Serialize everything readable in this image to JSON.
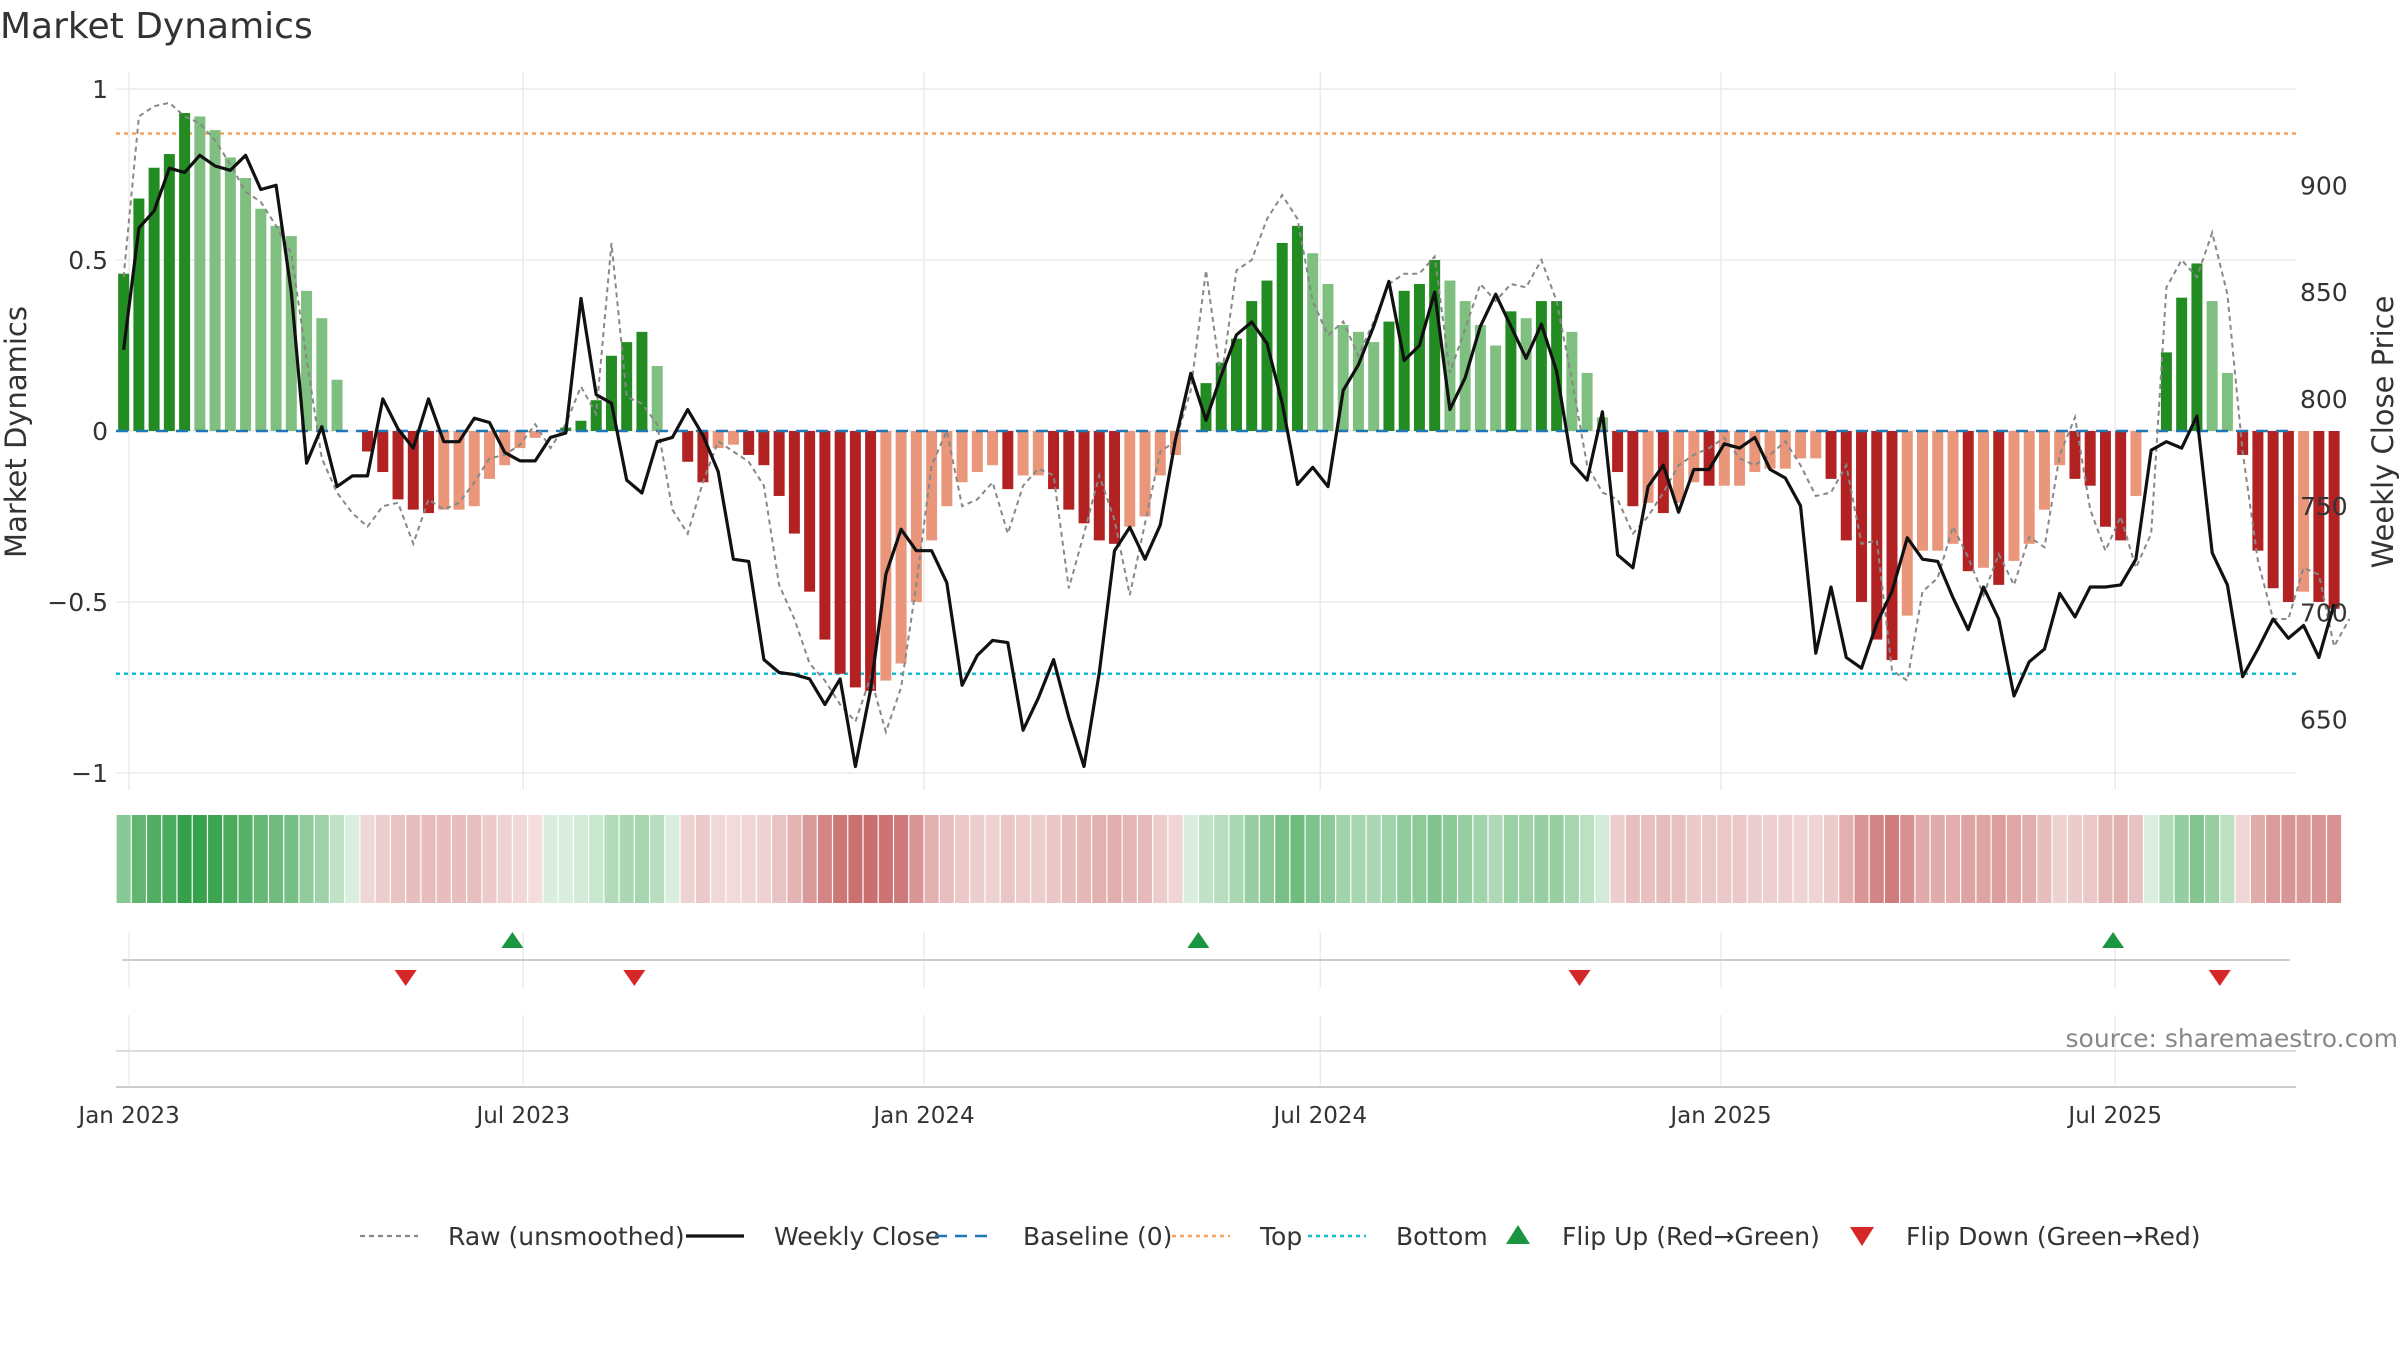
{
  "chart_data": {
    "type": "bar",
    "title": "Market Dynamics",
    "ylabel_left": "Market Dynamics",
    "ylabel_right": "Weekly Close Price",
    "source": "source: sharemaestro.com",
    "y_left_lim": [
      -1.05,
      1.05
    ],
    "y_left_ticks": [
      {
        "value": 1,
        "label": "1"
      },
      {
        "value": 0.5,
        "label": "0.5"
      },
      {
        "value": 0,
        "label": "0"
      },
      {
        "value": -0.5,
        "label": "−0.5"
      },
      {
        "value": -1,
        "label": "−1"
      }
    ],
    "y_right_lim": [
      617,
      953
    ],
    "y_right_ticks": [
      {
        "value": 900,
        "label": "900"
      },
      {
        "value": 850,
        "label": "850"
      },
      {
        "value": 800,
        "label": "800"
      },
      {
        "value": 750,
        "label": "750"
      },
      {
        "value": 700,
        "label": "700"
      },
      {
        "value": 650,
        "label": "650"
      }
    ],
    "x_range": [
      "2022-12-26",
      "2025-09-22"
    ],
    "x_ticks": [
      {
        "date": "2023-01-01",
        "label": "Jan 2023"
      },
      {
        "date": "2023-07-01",
        "label": "Jul 2023"
      },
      {
        "date": "2024-01-01",
        "label": "Jan 2024"
      },
      {
        "date": "2024-07-01",
        "label": "Jul 2024"
      },
      {
        "date": "2025-01-01",
        "label": "Jan 2025"
      },
      {
        "date": "2025-07-01",
        "label": "Jul 2025"
      }
    ],
    "start_date": "2022-12-26",
    "week_days": 7,
    "top_level": 0.87,
    "bottom_level": -0.71,
    "baseline": 0,
    "colors": {
      "up_strong": "#228b22",
      "up_weak": "#7fbf7f",
      "down_strong": "#b22222",
      "down_weak": "#e9967a",
      "close_line": "#111111",
      "raw_line": "#888888",
      "baseline": "#1f77b4",
      "top": "#f4a460",
      "bottom": "#17becf",
      "flip_up": "#1a9641",
      "flip_down": "#d62728",
      "grid": "#ebebeb"
    },
    "bar_values": [
      0.46,
      0.68,
      0.77,
      0.81,
      0.93,
      0.92,
      0.88,
      0.8,
      0.74,
      0.65,
      0.6,
      0.57,
      0.41,
      0.33,
      0.15,
      0.0,
      -0.06,
      -0.12,
      -0.2,
      -0.23,
      -0.24,
      -0.23,
      -0.23,
      -0.22,
      -0.14,
      -0.1,
      -0.05,
      -0.02,
      0.0,
      0.01,
      0.03,
      0.09,
      0.22,
      0.26,
      0.29,
      0.19,
      0.0,
      -0.09,
      -0.15,
      -0.05,
      -0.04,
      -0.07,
      -0.1,
      -0.19,
      -0.3,
      -0.47,
      -0.61,
      -0.71,
      -0.75,
      -0.76,
      -0.73,
      -0.68,
      -0.5,
      -0.32,
      -0.22,
      -0.15,
      -0.12,
      -0.1,
      -0.17,
      -0.13,
      -0.13,
      -0.17,
      -0.23,
      -0.27,
      -0.32,
      -0.33,
      -0.28,
      -0.25,
      -0.13,
      -0.07,
      0.0,
      0.14,
      0.2,
      0.27,
      0.38,
      0.44,
      0.55,
      0.6,
      0.52,
      0.43,
      0.31,
      0.29,
      0.26,
      0.32,
      0.41,
      0.43,
      0.5,
      0.44,
      0.38,
      0.31,
      0.25,
      0.35,
      0.33,
      0.38,
      0.38,
      0.29,
      0.17,
      0.04,
      -0.12,
      -0.22,
      -0.21,
      -0.24,
      -0.21,
      -0.15,
      -0.16,
      -0.16,
      -0.16,
      -0.12,
      -0.11,
      -0.11,
      -0.08,
      -0.08,
      -0.14,
      -0.32,
      -0.5,
      -0.61,
      -0.67,
      -0.54,
      -0.35,
      -0.35,
      -0.33,
      -0.41,
      -0.4,
      -0.45,
      -0.38,
      -0.33,
      -0.23,
      -0.1,
      -0.14,
      -0.16,
      -0.28,
      -0.32,
      -0.19,
      0.0,
      0.23,
      0.39,
      0.49,
      0.38,
      0.17,
      -0.07,
      -0.35,
      -0.46,
      -0.5,
      -0.47,
      -0.5,
      -0.52
    ],
    "raw_values": [
      0.45,
      0.92,
      0.95,
      0.96,
      0.92,
      0.9,
      0.85,
      0.78,
      0.7,
      0.67,
      0.6,
      0.52,
      0.21,
      -0.08,
      -0.18,
      -0.24,
      -0.28,
      -0.22,
      -0.21,
      -0.33,
      -0.2,
      -0.23,
      -0.21,
      -0.15,
      -0.08,
      -0.07,
      -0.04,
      0.02,
      -0.05,
      0.02,
      0.13,
      0.05,
      0.55,
      0.1,
      0.08,
      0.02,
      -0.23,
      -0.3,
      -0.15,
      -0.03,
      -0.06,
      -0.09,
      -0.16,
      -0.45,
      -0.55,
      -0.68,
      -0.73,
      -0.8,
      -0.85,
      -0.72,
      -0.88,
      -0.75,
      -0.45,
      -0.1,
      0.0,
      -0.22,
      -0.2,
      -0.15,
      -0.3,
      -0.16,
      -0.11,
      -0.13,
      -0.46,
      -0.3,
      -0.13,
      -0.26,
      -0.48,
      -0.27,
      -0.06,
      -0.03,
      0.12,
      0.47,
      0.15,
      0.47,
      0.5,
      0.62,
      0.69,
      0.62,
      0.38,
      0.28,
      0.32,
      0.22,
      0.32,
      0.43,
      0.46,
      0.46,
      0.51,
      0.17,
      0.3,
      0.43,
      0.38,
      0.43,
      0.42,
      0.5,
      0.38,
      0.15,
      -0.1,
      -0.18,
      -0.2,
      -0.3,
      -0.25,
      -0.18,
      -0.1,
      -0.07,
      -0.05,
      -0.02,
      -0.08,
      -0.1,
      -0.07,
      -0.03,
      -0.1,
      -0.19,
      -0.18,
      -0.1,
      -0.33,
      -0.32,
      -0.7,
      -0.73,
      -0.47,
      -0.43,
      -0.28,
      -0.37,
      -0.48,
      -0.36,
      -0.45,
      -0.31,
      -0.34,
      -0.07,
      0.04,
      -0.23,
      -0.35,
      -0.25,
      -0.4,
      -0.3,
      0.42,
      0.5,
      0.45,
      0.58,
      0.4,
      -0.06,
      -0.38,
      -0.55,
      -0.55,
      -0.4,
      -0.42,
      -0.63,
      -0.55
    ],
    "close_values": [
      823,
      880,
      888,
      908,
      906,
      914,
      909,
      907,
      914,
      898,
      900,
      850,
      770,
      787,
      759,
      764,
      764,
      800,
      786,
      777,
      800,
      780,
      780,
      791,
      789,
      775,
      771,
      771,
      782,
      784,
      847,
      802,
      798,
      762,
      756,
      780,
      782,
      795,
      783,
      766,
      725,
      724,
      678,
      672,
      671,
      669,
      657,
      669,
      628,
      664,
      718,
      739,
      729,
      729,
      714,
      666,
      680,
      687,
      686,
      645,
      660,
      678,
      651,
      628,
      672,
      729,
      740,
      725,
      741,
      781,
      812,
      790,
      811,
      830,
      836,
      826,
      798,
      760,
      768,
      759,
      804,
      816,
      834,
      855,
      818,
      825,
      850,
      795,
      810,
      834,
      849,
      834,
      819,
      835,
      813,
      770,
      762,
      794,
      727,
      721,
      759,
      769,
      747,
      767,
      767,
      779,
      777,
      782,
      767,
      763,
      750,
      681,
      712,
      679,
      674,
      695,
      710,
      735,
      725,
      724,
      707,
      692,
      712,
      697,
      661,
      677,
      683,
      709,
      698,
      712,
      712,
      713,
      725,
      776,
      780,
      777,
      792,
      728,
      713,
      670,
      683,
      697,
      688,
      694,
      679,
      704
    ],
    "flips": [
      {
        "date": "2023-05-08",
        "type": "down"
      },
      {
        "date": "2023-06-26",
        "type": "up"
      },
      {
        "date": "2023-08-21",
        "type": "down"
      },
      {
        "date": "2024-05-06",
        "type": "up"
      },
      {
        "date": "2024-10-28",
        "type": "down"
      },
      {
        "date": "2025-06-30",
        "type": "up"
      },
      {
        "date": "2025-08-18",
        "type": "down"
      }
    ],
    "legend": [
      {
        "key": "raw",
        "label": "Raw (unsmoothed)",
        "style": "dotted-line"
      },
      {
        "key": "close",
        "label": "Weekly Close",
        "style": "solid-line"
      },
      {
        "key": "baseline",
        "label": "Baseline (0)",
        "style": "dashed-line"
      },
      {
        "key": "top",
        "label": "Top",
        "style": "dotted-line"
      },
      {
        "key": "bottom",
        "label": "Bottom",
        "style": "dotted-line"
      },
      {
        "key": "flip_up",
        "label": "Flip Up (Red→Green)",
        "style": "triangle-up"
      },
      {
        "key": "flip_down",
        "label": "Flip Down (Green→Red)",
        "style": "triangle-down"
      }
    ],
    "legend_position": "bottom-center",
    "grid": true
  }
}
